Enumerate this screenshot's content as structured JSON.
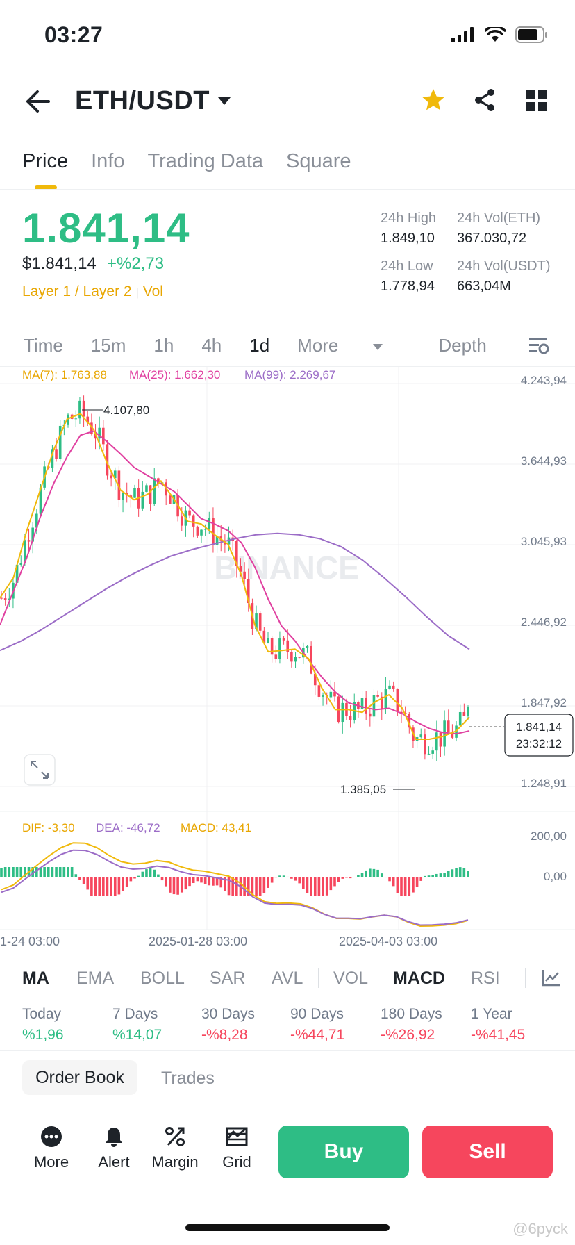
{
  "status_bar": {
    "time": "03:27"
  },
  "header": {
    "pair": "ETH/USDT"
  },
  "tabs": [
    {
      "label": "Price",
      "active": true
    },
    {
      "label": "Info",
      "active": false
    },
    {
      "label": "Trading Data",
      "active": false
    },
    {
      "label": "Square",
      "active": false
    }
  ],
  "ticker": {
    "last_price": "1.841,14",
    "usd_price": "$1.841,14",
    "change_pct": "+%2,73",
    "tags": [
      "Layer 1 / Layer 2",
      "Vol"
    ],
    "high_24h_label": "24h High",
    "high_24h": "1.849,10",
    "vol_eth_label": "24h Vol(ETH)",
    "vol_eth": "367.030,72",
    "low_24h_label": "24h Low",
    "low_24h": "1.778,94",
    "vol_usdt_label": "24h Vol(USDT)",
    "vol_usdt": "663,04M"
  },
  "timeframes": {
    "items": [
      "Time",
      "15m",
      "1h",
      "4h",
      "1d",
      "More",
      "Depth"
    ],
    "active": "1d"
  },
  "chart_data": {
    "type": "line",
    "ma_legend": {
      "ma7": "MA(7): 1.763,88",
      "ma25": "MA(25): 1.662,30",
      "ma99": "MA(99): 2.269,67"
    },
    "y_ticks": [
      "4.243,94",
      "3.644,93",
      "3.045,93",
      "2.446,92",
      "1.847,92",
      "1.248,91"
    ],
    "ylim": [
      1248.91,
      4243.94
    ],
    "x_ticks": [
      "1-24 03:00",
      "2025-01-28 03:00",
      "2025-04-03 03:00"
    ],
    "high_label": "4.107,80",
    "low_label": "1.385,05",
    "current_price_tag": "1.841,14",
    "countdown": "23:32:12",
    "watermark": "BINANCE",
    "series": [
      {
        "name": "MA(7)",
        "color": "#f0b90b",
        "values": [
          2650,
          2800,
          3150,
          3450,
          3750,
          3980,
          4020,
          3900,
          3650,
          3450,
          3380,
          3420,
          3520,
          3380,
          3220,
          3200,
          3120,
          3050,
          2820,
          2450,
          2250,
          2260,
          2270,
          2200,
          1980,
          1820,
          1820,
          1800,
          1880,
          1930,
          1830,
          1600,
          1600,
          1620,
          1660,
          1764
        ]
      },
      {
        "name": "MA(25)",
        "color": "#e040a0",
        "values": [
          2450,
          2700,
          2950,
          3250,
          3500,
          3700,
          3860,
          3890,
          3810,
          3720,
          3620,
          3560,
          3500,
          3440,
          3340,
          3240,
          3200,
          3150,
          3060,
          2880,
          2640,
          2440,
          2330,
          2190,
          2060,
          1950,
          1870,
          1840,
          1820,
          1830,
          1790,
          1730,
          1680,
          1650,
          1640,
          1662
        ]
      },
      {
        "name": "MA(99)",
        "color": "#9b6cc7",
        "values": [
          2260,
          2330,
          2420,
          2520,
          2620,
          2720,
          2810,
          2890,
          2960,
          3010,
          3050,
          3090,
          3120,
          3130,
          3120,
          3090,
          3030,
          2930,
          2800,
          2660,
          2510,
          2370,
          2269
        ]
      }
    ],
    "macd": {
      "dif": "DIF: -3,30",
      "dea": "DEA: -46,72",
      "macd": "MACD: 43,41",
      "y_ticks": [
        "200,00",
        "0,00"
      ]
    }
  },
  "indicators": {
    "items": [
      "MA",
      "EMA",
      "BOLL",
      "SAR",
      "AVL",
      "VOL",
      "MACD",
      "RSI"
    ],
    "active": [
      "MA",
      "MACD"
    ]
  },
  "performance": [
    {
      "label": "Today",
      "value": "%1,96",
      "color": "#2ebd85"
    },
    {
      "label": "7 Days",
      "value": "%14,07",
      "color": "#2ebd85"
    },
    {
      "label": "30 Days",
      "value": "-%8,28",
      "color": "#f6465d"
    },
    {
      "label": "90 Days",
      "value": "-%44,71",
      "color": "#f6465d"
    },
    {
      "label": "180 Days",
      "value": "-%26,92",
      "color": "#f6465d"
    },
    {
      "label": "1 Year",
      "value": "-%41,45",
      "color": "#f6465d"
    }
  ],
  "book_tabs": {
    "order_book": "Order Book",
    "trades": "Trades"
  },
  "actions": {
    "more": "More",
    "alert": "Alert",
    "margin": "Margin",
    "grid": "Grid",
    "buy": "Buy",
    "sell": "Sell"
  },
  "footer_tag": "@6pyck",
  "colors": {
    "up": "#2ebd85",
    "down": "#f6465d",
    "accent": "#f0b90b"
  }
}
